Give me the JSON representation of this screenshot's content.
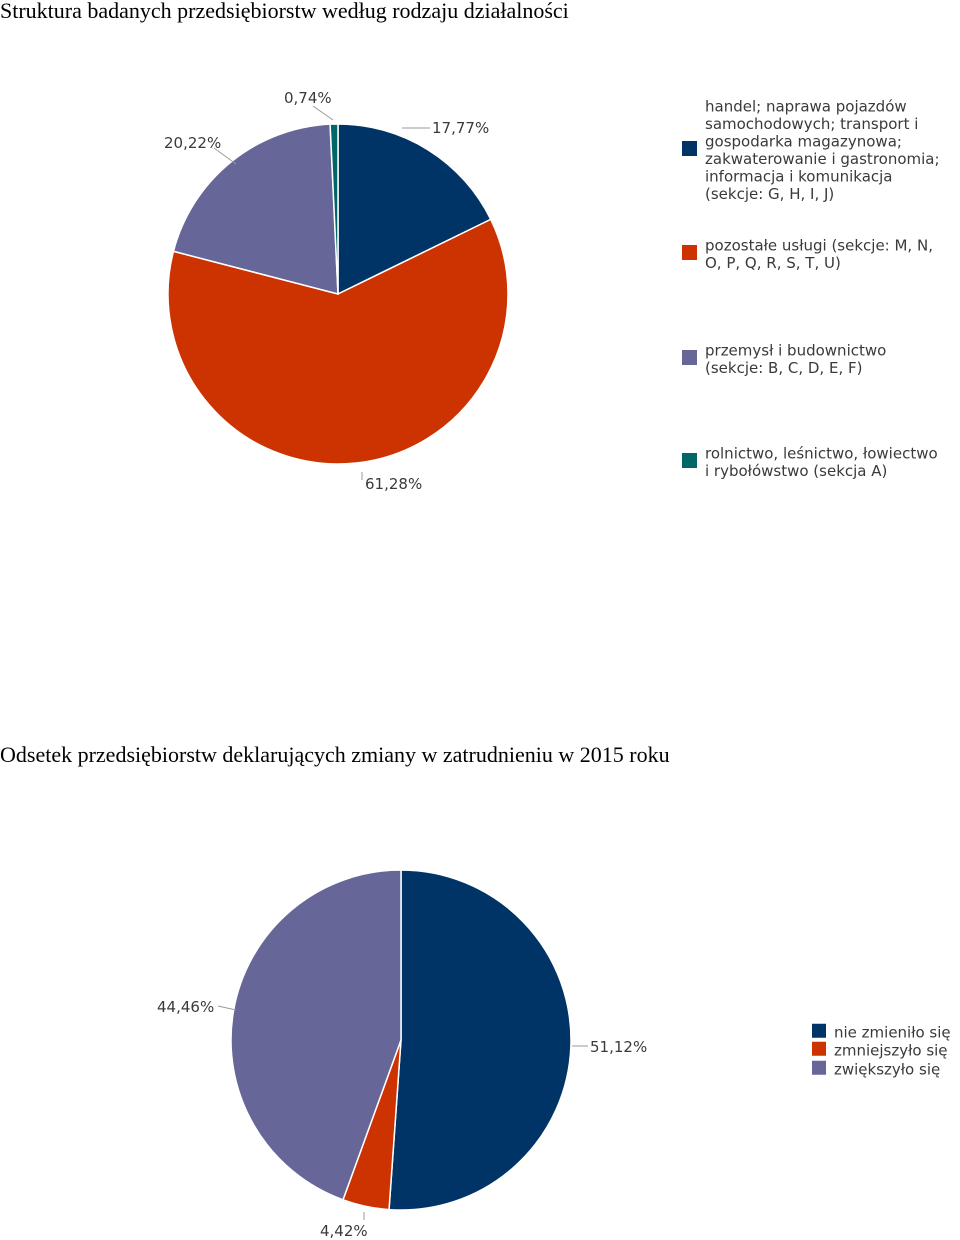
{
  "chart_data": [
    {
      "type": "pie",
      "title": "Struktura badanych przedsiębiorstw według rodzaju działalności",
      "slices": [
        {
          "name": "handel; naprawa pojazdów samochodowych; transport i gospodarka magazynowa; zakwaterowanie i gastronomia; informacja i komunikacja (sekcje: G, H, I, J)",
          "value": 17.77,
          "label": "17,77%",
          "color": "#003366"
        },
        {
          "name": "pozostałe usługi (sekcje: M, N, O, P, Q, R, S, T, U)",
          "value": 61.28,
          "label": "61,28%",
          "color": "#cc3300"
        },
        {
          "name": "przemysł i budownictwo (sekcje: B, C, D, E, F)",
          "value": 20.22,
          "label": "20,22%",
          "color": "#666699"
        },
        {
          "name": "rolnictwo, leśnictwo, łowiectwo i rybołówstwo (sekcja A)",
          "value": 0.74,
          "label": "0,74%",
          "color": "#006666"
        }
      ],
      "legend": [
        [
          "handel; naprawa pojazdów",
          "samochodowych; transport i",
          "gospodarka magazynowa;",
          "zakwaterowanie i gastronomia;",
          "informacja i komunikacja",
          "(sekcje: G, H, I, J)"
        ],
        [
          "pozostałe usługi (sekcje: M, N,",
          "O, P, Q, R, S, T, U)"
        ],
        [
          "przemysł i budownictwo",
          "(sekcje: B, C, D, E, F)"
        ],
        [
          "rolnictwo, leśnictwo, łowiectwo",
          "i rybołówstwo (sekcja A)"
        ]
      ],
      "legend_position": "right"
    },
    {
      "type": "pie",
      "title": "Odsetek przedsiębiorstw deklarujących zmiany w zatrudnieniu w 2015 roku",
      "slices": [
        {
          "name": "nie zmieniło się",
          "value": 51.12,
          "label": "51,12%",
          "color": "#003366"
        },
        {
          "name": "zmniejszyło się",
          "value": 4.42,
          "label": "4,42%",
          "color": "#cc3300"
        },
        {
          "name": "zwiększyło się",
          "value": 44.46,
          "label": "44,46%",
          "color": "#666699"
        }
      ],
      "legend": [
        [
          "nie zmieniło się"
        ],
        [
          "zmniejszyło się"
        ],
        [
          "zwiększyło się"
        ]
      ],
      "legend_position": "right"
    }
  ]
}
